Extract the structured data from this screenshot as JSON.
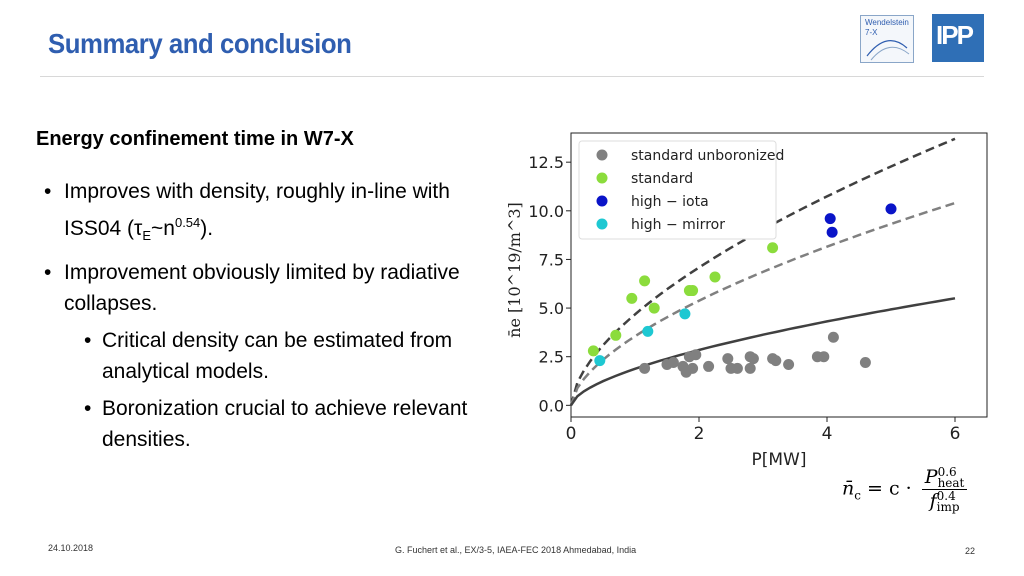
{
  "slide": {
    "title": "Summary and conclusion",
    "subheading": "Energy confinement time in W7-X",
    "bullet1_a": "Improves with density, roughly in-line with ISS04 (",
    "bullet1_tau": "τ",
    "bullet1_sub": "E",
    "bullet1_mid": "~n",
    "bullet1_sup": "0.54",
    "bullet1_end": ").",
    "bullet2": "Improvement obviously limited by radiative collapses.",
    "bullet3": "Critical density can be estimated from analytical models.",
    "bullet4": "Boronization crucial to achieve relevant densities.",
    "logo_w7x_line1": "Wendelstein",
    "logo_w7x_line2": "7-X",
    "logo_ipp": "IPP"
  },
  "footer": {
    "date": "24.10.2018",
    "citation": "G. Fuchert et al., EX/3-5, IAEA-FEC 2018 Ahmedabad, India",
    "page": "22"
  },
  "formula": {
    "lhs": "n̄",
    "lhs_sub": "c",
    "eq": "= c ·",
    "num": "P",
    "num_sup": "0.6",
    "num_sub": "heat",
    "den": "f",
    "den_sup": "0.4",
    "den_sub": "imp"
  },
  "chart_data": {
    "type": "scatter",
    "xlabel": "P[MW]",
    "ylabel": "n̄e [10^19/m^3]",
    "xlim": [
      0,
      6.5
    ],
    "ylim": [
      -0.6,
      14
    ],
    "xticks": [
      "0",
      "2",
      "4",
      "6"
    ],
    "yticks": [
      "0.0",
      "2.5",
      "5.0",
      "7.5",
      "10.0",
      "12.5"
    ],
    "legend_position": "top-left",
    "series": [
      {
        "name": "standard unboronized",
        "color": "#808080",
        "points": [
          [
            1.15,
            1.9
          ],
          [
            1.5,
            2.1
          ],
          [
            1.6,
            2.2
          ],
          [
            1.75,
            2.0
          ],
          [
            1.8,
            1.7
          ],
          [
            1.85,
            2.5
          ],
          [
            1.9,
            1.9
          ],
          [
            1.95,
            2.6
          ],
          [
            2.15,
            2.0
          ],
          [
            2.45,
            2.4
          ],
          [
            2.5,
            1.9
          ],
          [
            2.6,
            1.9
          ],
          [
            2.8,
            2.5
          ],
          [
            2.8,
            1.9
          ],
          [
            2.85,
            2.4
          ],
          [
            3.15,
            2.4
          ],
          [
            3.2,
            2.3
          ],
          [
            3.4,
            2.1
          ],
          [
            3.85,
            2.5
          ],
          [
            3.95,
            2.5
          ],
          [
            4.1,
            3.5
          ],
          [
            4.6,
            2.2
          ]
        ]
      },
      {
        "name": "standard",
        "color": "#8bdc3c",
        "points": [
          [
            0.35,
            2.8
          ],
          [
            0.7,
            3.6
          ],
          [
            0.95,
            5.5
          ],
          [
            1.15,
            6.4
          ],
          [
            1.3,
            5.0
          ],
          [
            1.85,
            5.9
          ],
          [
            1.9,
            5.9
          ],
          [
            2.25,
            6.6
          ],
          [
            3.15,
            8.1
          ]
        ]
      },
      {
        "name": "high − iota",
        "color": "#0a14c8",
        "points": [
          [
            4.05,
            9.6
          ],
          [
            4.08,
            8.9
          ],
          [
            5.0,
            10.1
          ]
        ]
      },
      {
        "name": "high − mirror",
        "color": "#1ec8d2",
        "points": [
          [
            0.45,
            2.3
          ],
          [
            1.2,
            3.8
          ],
          [
            1.78,
            4.7
          ]
        ]
      }
    ],
    "curves": [
      {
        "style": "dashed",
        "color": "#404040",
        "end_value": 13.7
      },
      {
        "style": "dashed",
        "color": "#808080",
        "end_value": 10.4
      },
      {
        "style": "solid",
        "color": "#404040",
        "end_value": 5.5
      }
    ]
  }
}
